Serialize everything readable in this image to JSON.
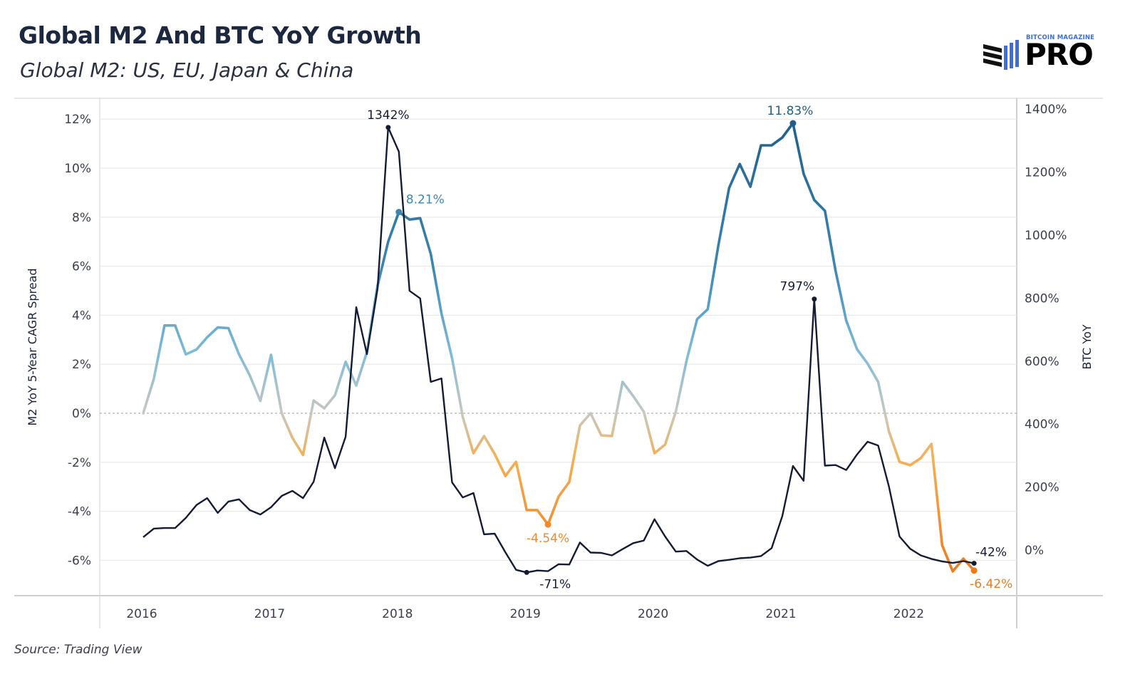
{
  "header": {
    "title": "Global M2 And BTC YoY Growth",
    "subtitle": "Global M2: US, EU, Japan & China"
  },
  "logo": {
    "small_text": "BITCOIN MAGAZINE",
    "big_text": "PRO",
    "icon": "candlestick-bars-icon"
  },
  "footer": {
    "source": "Source: Trading View"
  },
  "colors": {
    "btc_line": "#141c33",
    "m2_positive_high": "#1f5f8b",
    "m2_positive_low": "#7dbbd8",
    "m2_neutral": "#c8c8c0",
    "m2_negative_low": "#f5b054",
    "m2_negative_high": "#ef7a1a",
    "grid": "#e6e6e6",
    "zero_line": "#b0b0b0"
  },
  "chart_data": {
    "type": "line",
    "title": "Global M2 And BTC YoY Growth",
    "subtitle": "Global M2: US, EU, Japan & China",
    "xlabel": "",
    "x_ticks": [
      "2016",
      "2017",
      "2018",
      "2019",
      "2020",
      "2021",
      "2022"
    ],
    "x_start": "2016-01",
    "x_frequency": "monthly",
    "grid": true,
    "legend": "none",
    "y_left": {
      "label": "M2 YoY 5-Year CAGR Spread",
      "ticks": [
        "12%",
        "10%",
        "8%",
        "6%",
        "4%",
        "2%",
        "0%",
        "-2%",
        "-4%",
        "-6%"
      ],
      "tick_values": [
        12,
        10,
        8,
        6,
        4,
        2,
        0,
        -2,
        -4,
        -6
      ],
      "range": [
        -7.3,
        12.6
      ]
    },
    "y_right": {
      "label": "BTC YoY",
      "ticks": [
        "1400%",
        "1200%",
        "1000%",
        "800%",
        "600%",
        "400%",
        "200%",
        "0%"
      ],
      "tick_values": [
        1400,
        1200,
        1000,
        800,
        600,
        400,
        200,
        0
      ],
      "range": [
        -140,
        1535
      ]
    },
    "series": [
      {
        "name": "M2 YoY 5-Year CAGR Spread",
        "axis": "left",
        "unit": "%",
        "values": [
          0.0,
          1.4,
          3.58,
          3.58,
          2.4,
          2.6,
          3.1,
          3.5,
          3.47,
          2.4,
          1.55,
          0.5,
          2.38,
          0.0,
          -1.0,
          -1.7,
          0.52,
          0.2,
          0.73,
          2.1,
          1.13,
          2.5,
          5.2,
          7.0,
          8.21,
          7.9,
          7.96,
          6.5,
          4.07,
          2.24,
          -0.15,
          -1.63,
          -0.93,
          -1.66,
          -2.56,
          -1.98,
          -3.95,
          -3.95,
          -4.54,
          -3.4,
          -2.8,
          -0.5,
          0.0,
          -0.9,
          -0.93,
          1.28,
          0.7,
          0.06,
          -1.63,
          -1.28,
          0.06,
          2.12,
          3.84,
          4.24,
          6.86,
          9.19,
          10.17,
          9.24,
          10.93,
          10.93,
          11.25,
          11.83,
          9.77,
          8.7,
          8.26,
          5.8,
          3.78,
          2.62,
          2.03,
          1.28,
          -0.73,
          -1.98,
          -2.12,
          -1.83,
          -1.25,
          -5.38,
          -6.45,
          -5.93,
          -6.42
        ]
      },
      {
        "name": "BTC YoY",
        "axis": "right",
        "unit": "%",
        "values": [
          41,
          68,
          70,
          70,
          102,
          143,
          165,
          118,
          154,
          161,
          127,
          113,
          136,
          172,
          188,
          165,
          217,
          357,
          260,
          360,
          771,
          622,
          830,
          1342,
          1265,
          823,
          799,
          534,
          545,
          215,
          167,
          181,
          50,
          52,
          -7,
          -63,
          -71,
          -65,
          -67,
          -45,
          -46,
          24,
          -8,
          -9,
          -17,
          3,
          22,
          30,
          98,
          43,
          -5,
          -3,
          -30,
          -50,
          -35,
          -31,
          -26,
          -24,
          -19,
          6,
          108,
          267,
          220,
          797,
          268,
          270,
          254,
          303,
          344,
          332,
          203,
          43,
          4,
          -17,
          -28,
          -36,
          -41,
          -35,
          -42
        ]
      }
    ],
    "annotations": [
      {
        "series": "BTC YoY",
        "text": "1342%",
        "index": 23
      },
      {
        "series": "BTC YoY",
        "text": "797%",
        "index": 63
      },
      {
        "series": "BTC YoY",
        "text": "-71%",
        "index": 36
      },
      {
        "series": "BTC YoY",
        "text": "-42%",
        "index": 78
      },
      {
        "series": "M2 YoY 5-Year CAGR Spread",
        "text": "8.21%",
        "index": 24
      },
      {
        "series": "M2 YoY 5-Year CAGR Spread",
        "text": "11.83%",
        "index": 61
      },
      {
        "series": "M2 YoY 5-Year CAGR Spread",
        "text": "-4.54%",
        "index": 38
      },
      {
        "series": "M2 YoY 5-Year CAGR Spread",
        "text": "-6.42%",
        "index": 78
      }
    ]
  }
}
